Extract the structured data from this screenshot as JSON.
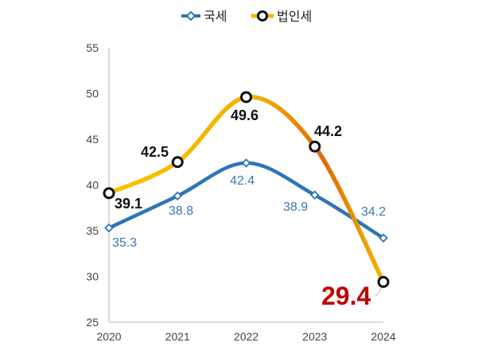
{
  "chart_data": {
    "type": "line",
    "x": [
      "2020",
      "2021",
      "2022",
      "2023",
      "2024"
    ],
    "ylim": [
      25,
      55
    ],
    "yticks": [
      25,
      30,
      35,
      40,
      45,
      50,
      55
    ],
    "grid": false,
    "legend": "top-center",
    "series": [
      {
        "name": "국세",
        "values": [
          35.3,
          38.8,
          42.4,
          38.9,
          34.2
        ],
        "labels": [
          "35.3",
          "38.8",
          "42.4",
          "38.9",
          "34.2"
        ],
        "color": "#2e75b6",
        "marker": "diamond"
      },
      {
        "name": "법인세",
        "values": [
          39.1,
          42.5,
          49.6,
          44.2,
          29.4
        ],
        "labels": [
          "39.1",
          "42.5",
          "49.6",
          "44.2",
          "29.4"
        ],
        "color": "#f5b800",
        "color_end": "#d4600a",
        "marker": "circle",
        "highlight_color": "#c00000"
      }
    ]
  }
}
